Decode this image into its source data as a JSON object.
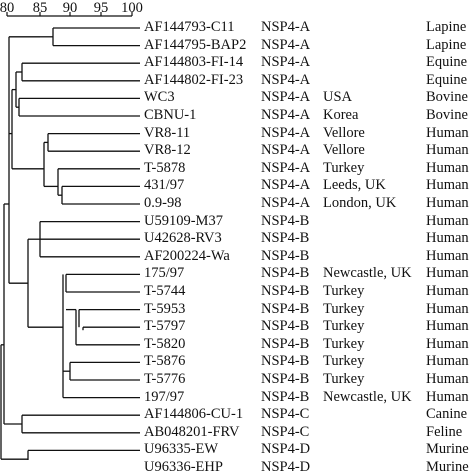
{
  "scale": {
    "ticks": [
      "80",
      "85",
      "90",
      "95",
      "100"
    ],
    "values": [
      80,
      85,
      90,
      95,
      100
    ]
  },
  "columns": {
    "left": "",
    "group": "",
    "location": "",
    "host": ""
  },
  "taxa": [
    {
      "name": "AF144793-C11",
      "group": "NSP4-A",
      "location": "",
      "host": "Lapine"
    },
    {
      "name": "AF144795-BAP2",
      "group": "NSP4-A",
      "location": "",
      "host": "Lapine"
    },
    {
      "name": "AF144803-FI-14",
      "group": "NSP4-A",
      "location": "",
      "host": "Equine"
    },
    {
      "name": "AF144802-FI-23",
      "group": "NSP4-A",
      "location": "",
      "host": "Equine"
    },
    {
      "name": "WC3",
      "group": "NSP4-A",
      "location": "USA",
      "host": "Bovine"
    },
    {
      "name": "CBNU-1",
      "group": "NSP4-A",
      "location": "Korea",
      "host": "Bovine"
    },
    {
      "name": "VR8-11",
      "group": "NSP4-A",
      "location": "Vellore",
      "host": "Human"
    },
    {
      "name": "VR8-12",
      "group": "NSP4-A",
      "location": "Vellore",
      "host": "Human"
    },
    {
      "name": "T-5878",
      "group": "NSP4-A",
      "location": "Turkey",
      "host": "Human"
    },
    {
      "name": "431/97",
      "group": "NSP4-A",
      "location": "Leeds, UK",
      "host": "Human"
    },
    {
      "name": "0.9-98",
      "group": "NSP4-A",
      "location": "London, UK",
      "host": "Human"
    },
    {
      "name": "U59109-M37",
      "group": "NSP4-B",
      "location": "",
      "host": "Human"
    },
    {
      "name": "U42628-RV3",
      "group": "NSP4-B",
      "location": "",
      "host": "Human"
    },
    {
      "name": "AF200224-Wa",
      "group": "NSP4-B",
      "location": "",
      "host": "Human"
    },
    {
      "name": "175/97",
      "group": "NSP4-B",
      "location": "Newcastle, UK",
      "host": "Human"
    },
    {
      "name": "T-5744",
      "group": "NSP4-B",
      "location": "Turkey",
      "host": "Human"
    },
    {
      "name": "T-5953",
      "group": "NSP4-B",
      "location": "Turkey",
      "host": "Human"
    },
    {
      "name": "T-5797",
      "group": "NSP4-B",
      "location": "Turkey",
      "host": "Human"
    },
    {
      "name": "T-5820",
      "group": "NSP4-B",
      "location": "Turkey",
      "host": "Human"
    },
    {
      "name": "T-5876",
      "group": "NSP4-B",
      "location": "Turkey",
      "host": "Human"
    },
    {
      "name": "T-5776",
      "group": "NSP4-B",
      "location": "Turkey",
      "host": "Human"
    },
    {
      "name": "197/97",
      "group": "NSP4-B",
      "location": "Newcastle, UK",
      "host": "Human"
    },
    {
      "name": "AF144806-CU-1",
      "group": "NSP4-C",
      "location": "",
      "host": "Canine"
    },
    {
      "name": "AB048201-FRV",
      "group": "NSP4-C",
      "location": "",
      "host": "Feline"
    },
    {
      "name": "U96335-EW",
      "group": "NSP4-D",
      "location": "",
      "host": "Murine"
    },
    {
      "name": "U96336-EHP",
      "group": "NSP4-D",
      "location": "",
      "host": "Murine"
    }
  ]
}
